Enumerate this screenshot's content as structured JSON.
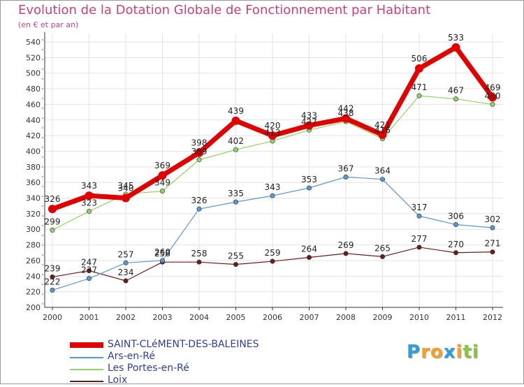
{
  "chart_data": {
    "type": "line",
    "title": "Evolution de la Dotation Globale de Fonctionnement par Habitant",
    "subtitle": "(en € et par an)",
    "xlabel": "",
    "ylabel": "",
    "ylim": [
      200,
      540
    ],
    "yticks": [
      200,
      220,
      240,
      260,
      280,
      300,
      320,
      340,
      360,
      380,
      400,
      420,
      440,
      460,
      480,
      500,
      520,
      540
    ],
    "categories": [
      "2000",
      "2001",
      "2002",
      "2003",
      "2004",
      "2005",
      "2006",
      "2007",
      "2008",
      "2009",
      "2010",
      "2011",
      "2012"
    ],
    "grid": true,
    "legend_position": "bottom-left",
    "series": [
      {
        "name": "Loix",
        "color": "#6b1d1d",
        "width": 1.2,
        "values": [
          239,
          247,
          234,
          258,
          258,
          255,
          259,
          264,
          269,
          265,
          277,
          270,
          271
        ]
      },
      {
        "name": "Ars-en-Ré",
        "color": "#5a97d0",
        "width": 1.2,
        "values": [
          222,
          237,
          257,
          260,
          326,
          335,
          343,
          353,
          367,
          364,
          317,
          306,
          302
        ]
      },
      {
        "name": "Les Portes-en-Ré",
        "color": "#8fd36a",
        "width": 1.2,
        "values": [
          299,
          323,
          345,
          349,
          389,
          402,
          413,
          427,
          438,
          416,
          471,
          467,
          460
        ]
      },
      {
        "name": "SAINT-CLéMENT-DES-BALEINES",
        "color": "#e00000",
        "width": 7,
        "values": [
          326,
          343,
          340,
          369,
          398,
          439,
          420,
          433,
          442,
          421,
          506,
          533,
          469
        ]
      }
    ]
  },
  "legend": {
    "items": [
      {
        "label": "SAINT-CLéMENT-DES-BALEINES",
        "color": "#e00000"
      },
      {
        "label": "Ars-en-Ré",
        "color": "#5a97d0"
      },
      {
        "label": "Les Portes-en-Ré",
        "color": "#8fd36a"
      },
      {
        "label": "Loix",
        "color": "#6b1d1d"
      }
    ]
  },
  "brand": {
    "letters": [
      {
        "char": "P",
        "color": "#2e9fd8"
      },
      {
        "char": "r",
        "color": "#f2a227"
      },
      {
        "char": "o",
        "color": "#f2a227"
      },
      {
        "char": "x",
        "color": "#2e9fd8"
      },
      {
        "char": "i",
        "color": "#f2a227"
      },
      {
        "char": "t",
        "color": "#8cc63f"
      },
      {
        "char": "i",
        "color": "#8cc63f"
      }
    ]
  }
}
